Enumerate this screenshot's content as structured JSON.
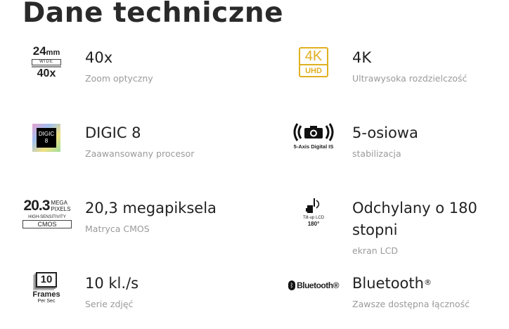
{
  "title": "Dane techniczne",
  "items": [
    {
      "heading": "40x",
      "sub": "Zoom optyczny",
      "icon": "zoom-24mm-40x-icon",
      "logo": [
        "24",
        "mm",
        "WIDE",
        "40x"
      ]
    },
    {
      "heading": "4K",
      "sub": "Ultrawysoka rozdzielczość",
      "icon": "4k-uhd-icon",
      "logo": [
        "4K",
        "UHD"
      ],
      "color": "#e0b020"
    },
    {
      "heading": "DIGIC 8",
      "sub": "Zaawansowany procesor",
      "icon": "digic-8-icon",
      "logo": [
        "DIGIC",
        "8"
      ]
    },
    {
      "heading": "5-osiowa",
      "sub": "stabilizacja",
      "icon": "5-axis-stabilization-icon",
      "logo": [
        "5-Axis Digital IS"
      ]
    },
    {
      "heading": "20,3 megapiksela",
      "sub": "Matryca CMOS",
      "icon": "cmos-sensor-icon",
      "logo": [
        "20.3",
        "MEGA",
        "PIXELS",
        "HIGH-SENSITIVITY",
        "CMOS"
      ]
    },
    {
      "heading": "Odchylany o 180 stopni",
      "sub": "ekran LCD",
      "icon": "tilt-lcd-icon",
      "logo": [
        "Tilt-up LCD",
        "180°"
      ]
    },
    {
      "heading": "10 kl./s",
      "sub": "Serie zdjęć",
      "icon": "frames-per-sec-icon",
      "logo": [
        "10",
        "Frames",
        "Per Sec"
      ]
    },
    {
      "heading": "Bluetooth",
      "heading_sup": "®",
      "sub": "Zawsze dostępna łączność",
      "icon": "bluetooth-icon",
      "logo": [
        "Bluetooth®"
      ]
    }
  ]
}
